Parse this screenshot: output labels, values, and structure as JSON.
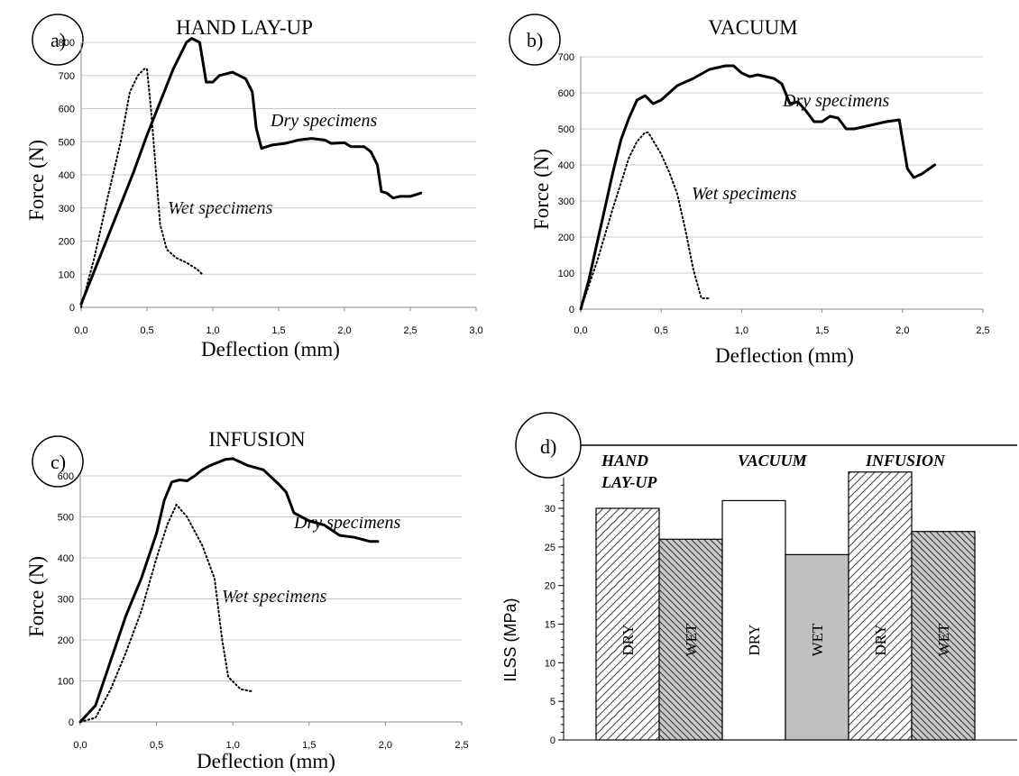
{
  "chart_data": [
    {
      "type": "line",
      "panel_label": "a)",
      "title": "HAND LAY-UP",
      "xlabel": "Deflection (mm)",
      "ylabel": "Force (N)",
      "xlim": [
        0,
        3.0
      ],
      "ylim": [
        0,
        800
      ],
      "x_ticks": [
        "0,0",
        "0,5",
        "1,0",
        "1,5",
        "2,0",
        "2,5",
        "3,0"
      ],
      "y_ticks": [
        "0",
        "100",
        "200",
        "300",
        "400",
        "500",
        "600",
        "700",
        "800"
      ],
      "grid": "horizontal",
      "series": [
        {
          "name": "Dry specimens",
          "style": "solid",
          "points": [
            [
              0,
              10
            ],
            [
              0.1,
              110
            ],
            [
              0.2,
              210
            ],
            [
              0.3,
              310
            ],
            [
              0.4,
              410
            ],
            [
              0.5,
              520
            ],
            [
              0.6,
              620
            ],
            [
              0.7,
              720
            ],
            [
              0.8,
              800
            ],
            [
              0.84,
              812
            ],
            [
              0.9,
              800
            ],
            [
              0.95,
              680
            ],
            [
              1.0,
              680
            ],
            [
              1.05,
              700
            ],
            [
              1.1,
              705
            ],
            [
              1.15,
              710
            ],
            [
              1.2,
              700
            ],
            [
              1.25,
              690
            ],
            [
              1.3,
              650
            ],
            [
              1.33,
              540
            ],
            [
              1.37,
              480
            ],
            [
              1.45,
              490
            ],
            [
              1.55,
              495
            ],
            [
              1.65,
              505
            ],
            [
              1.75,
              510
            ],
            [
              1.85,
              505
            ],
            [
              1.9,
              495
            ],
            [
              2.0,
              497
            ],
            [
              2.05,
              485
            ],
            [
              2.15,
              485
            ],
            [
              2.2,
              470
            ],
            [
              2.25,
              430
            ],
            [
              2.28,
              350
            ],
            [
              2.32,
              345
            ],
            [
              2.37,
              330
            ],
            [
              2.42,
              335
            ],
            [
              2.5,
              335
            ],
            [
              2.58,
              345
            ]
          ]
        },
        {
          "name": "Wet specimens",
          "style": "dotted",
          "points": [
            [
              0,
              0
            ],
            [
              0.1,
              150
            ],
            [
              0.2,
              330
            ],
            [
              0.3,
              500
            ],
            [
              0.37,
              650
            ],
            [
              0.43,
              700
            ],
            [
              0.48,
              720
            ],
            [
              0.5,
              720
            ],
            [
              0.53,
              600
            ],
            [
              0.57,
              400
            ],
            [
              0.6,
              250
            ],
            [
              0.65,
              175
            ],
            [
              0.72,
              150
            ],
            [
              0.8,
              135
            ],
            [
              0.88,
              115
            ],
            [
              0.92,
              100
            ]
          ]
        }
      ],
      "annotations": [
        "Dry specimens",
        "Wet specimens"
      ]
    },
    {
      "type": "line",
      "panel_label": "b)",
      "title": "VACUUM",
      "xlabel": "Deflection (mm)",
      "ylabel": "Force (N)",
      "xlim": [
        0,
        2.5
      ],
      "ylim": [
        0,
        700
      ],
      "x_ticks": [
        "0,0",
        "0,5",
        "1,0",
        "1,5",
        "2,0",
        "2,5"
      ],
      "y_ticks": [
        "0",
        "100",
        "200",
        "300",
        "400",
        "500",
        "600",
        "700"
      ],
      "grid": "horizontal",
      "series": [
        {
          "name": "Dry specimens",
          "style": "solid",
          "points": [
            [
              0,
              0
            ],
            [
              0.05,
              80
            ],
            [
              0.1,
              180
            ],
            [
              0.15,
              280
            ],
            [
              0.2,
              380
            ],
            [
              0.25,
              470
            ],
            [
              0.3,
              530
            ],
            [
              0.35,
              580
            ],
            [
              0.4,
              592
            ],
            [
              0.45,
              570
            ],
            [
              0.5,
              580
            ],
            [
              0.55,
              600
            ],
            [
              0.6,
              620
            ],
            [
              0.7,
              640
            ],
            [
              0.8,
              665
            ],
            [
              0.9,
              675
            ],
            [
              0.95,
              675
            ],
            [
              1.0,
              655
            ],
            [
              1.05,
              645
            ],
            [
              1.1,
              650
            ],
            [
              1.2,
              640
            ],
            [
              1.25,
              625
            ],
            [
              1.3,
              570
            ],
            [
              1.35,
              575
            ],
            [
              1.4,
              550
            ],
            [
              1.45,
              520
            ],
            [
              1.5,
              520
            ],
            [
              1.55,
              535
            ],
            [
              1.6,
              530
            ],
            [
              1.65,
              500
            ],
            [
              1.7,
              500
            ],
            [
              1.8,
              510
            ],
            [
              1.9,
              520
            ],
            [
              1.98,
              525
            ],
            [
              2.03,
              390
            ],
            [
              2.07,
              365
            ],
            [
              2.12,
              375
            ],
            [
              2.2,
              400
            ]
          ]
        },
        {
          "name": "Wet specimens",
          "style": "dotted",
          "points": [
            [
              0,
              0
            ],
            [
              0.1,
              130
            ],
            [
              0.2,
              280
            ],
            [
              0.3,
              420
            ],
            [
              0.35,
              465
            ],
            [
              0.4,
              490
            ],
            [
              0.42,
              490
            ],
            [
              0.5,
              430
            ],
            [
              0.55,
              380
            ],
            [
              0.6,
              320
            ],
            [
              0.65,
              220
            ],
            [
              0.7,
              110
            ],
            [
              0.75,
              30
            ],
            [
              0.8,
              30
            ]
          ]
        }
      ],
      "annotations": [
        "Dry specimens",
        "Wet specimens"
      ]
    },
    {
      "type": "line",
      "panel_label": "c)",
      "title": "INFUSION",
      "xlabel": "Deflection (mm)",
      "ylabel": "Force (N)",
      "xlim": [
        0,
        2.5
      ],
      "ylim": [
        0,
        600
      ],
      "x_ticks": [
        "0,0",
        "0,5",
        "1,0",
        "1,5",
        "2,0",
        "2,5"
      ],
      "y_ticks": [
        "0",
        "100",
        "200",
        "300",
        "400",
        "500",
        "600"
      ],
      "grid": "horizontal",
      "series": [
        {
          "name": "Dry specimens",
          "style": "solid",
          "points": [
            [
              0,
              0
            ],
            [
              0.1,
              40
            ],
            [
              0.2,
              150
            ],
            [
              0.3,
              260
            ],
            [
              0.4,
              350
            ],
            [
              0.5,
              460
            ],
            [
              0.55,
              540
            ],
            [
              0.6,
              585
            ],
            [
              0.65,
              590
            ],
            [
              0.7,
              588
            ],
            [
              0.75,
              600
            ],
            [
              0.8,
              615
            ],
            [
              0.85,
              625
            ],
            [
              0.95,
              640
            ],
            [
              1.0,
              642
            ],
            [
              1.1,
              625
            ],
            [
              1.2,
              615
            ],
            [
              1.3,
              580
            ],
            [
              1.35,
              560
            ],
            [
              1.4,
              510
            ],
            [
              1.5,
              490
            ],
            [
              1.6,
              480
            ],
            [
              1.7,
              455
            ],
            [
              1.8,
              450
            ],
            [
              1.9,
              440
            ],
            [
              1.95,
              440
            ]
          ]
        },
        {
          "name": "Wet specimens",
          "style": "dotted",
          "points": [
            [
              0,
              0
            ],
            [
              0.1,
              10
            ],
            [
              0.2,
              80
            ],
            [
              0.3,
              170
            ],
            [
              0.4,
              270
            ],
            [
              0.5,
              400
            ],
            [
              0.57,
              480
            ],
            [
              0.63,
              530
            ],
            [
              0.7,
              500
            ],
            [
              0.8,
              430
            ],
            [
              0.88,
              350
            ],
            [
              0.93,
              200
            ],
            [
              0.97,
              110
            ],
            [
              1.05,
              80
            ],
            [
              1.12,
              75
            ]
          ]
        }
      ],
      "annotations": [
        "Dry specimens",
        "Wet specimens"
      ]
    },
    {
      "type": "bar",
      "panel_label": "d)",
      "ylabel": "ILSS (MPa)",
      "ylim": [
        0,
        35
      ],
      "y_ticks": [
        "0",
        "5",
        "10",
        "15",
        "20",
        "25",
        "30"
      ],
      "groups": [
        "HAND LAY-UP",
        "VACUUM",
        "INFUSION"
      ],
      "group_label_lines": [
        [
          "HAND",
          "LAY-UP"
        ],
        [
          "VACUUM"
        ],
        [
          "INFUSION"
        ]
      ],
      "bars": [
        {
          "group": "HAND LAY-UP",
          "label": "DRY",
          "value": 30,
          "fill": "hatch-forward"
        },
        {
          "group": "HAND LAY-UP",
          "label": "WET",
          "value": 26,
          "fill": "hatch-back-gray"
        },
        {
          "group": "VACUUM",
          "label": "DRY",
          "value": 31,
          "fill": "white"
        },
        {
          "group": "VACUUM",
          "label": "WET",
          "value": 24,
          "fill": "gray"
        },
        {
          "group": "INFUSION",
          "label": "DRY",
          "value": 34.7,
          "fill": "hatch-forward"
        },
        {
          "group": "INFUSION",
          "label": "WET",
          "value": 27,
          "fill": "hatch-back-gray"
        }
      ],
      "colors": {
        "gray": "#c0c0c0",
        "white": "#ffffff",
        "line": "#000000"
      }
    }
  ]
}
